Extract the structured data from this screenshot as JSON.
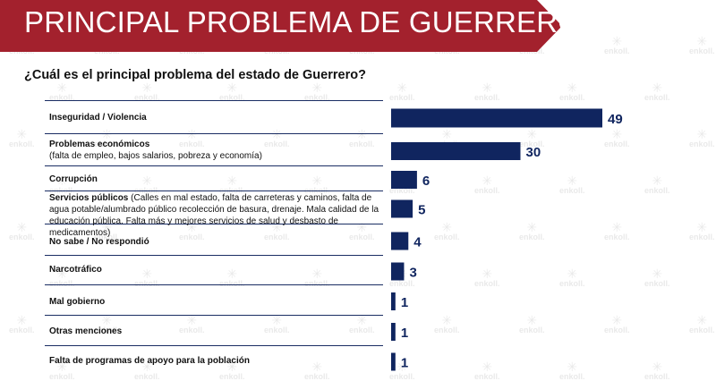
{
  "header": {
    "title": "PRINCIPAL PROBLEMA DE GUERRERO",
    "question": "¿Cuál es el principal problema del estado de Guerrero?"
  },
  "watermark": {
    "brand": "enkoll."
  },
  "colors": {
    "banner": "#a3212d",
    "bar": "#10255f",
    "text": "#111111"
  },
  "chart_data": {
    "type": "bar",
    "orientation": "horizontal",
    "categories": [
      "Inseguridad / Violencia",
      "Problemas económicos (falta de empleo, bajos salarios, pobreza y economía)",
      "Corrupción",
      "Servicios públicos (Calles en mal estado, falta de carreteras y caminos, falta de agua potable/alumbrado público recolección de basura, drenaje. Mala calidad de la educación pública. Falta más y mejores servicios de salud y desbasto de medicamentos)",
      "No sabe / No respondió",
      "Narcotráfico",
      "Mal gobierno",
      "Otras menciones",
      "Falta de programas de apoyo para la población"
    ],
    "values": [
      49,
      30,
      6,
      5,
      4,
      3,
      1,
      1,
      1
    ],
    "labels": [
      {
        "main": "Inseguridad / Violencia",
        "detail": ""
      },
      {
        "main": "Problemas económicos",
        "detail": "(falta de empleo, bajos salarios, pobreza y economía)"
      },
      {
        "main": "Corrupción",
        "detail": ""
      },
      {
        "main": "Servicios públicos",
        "detail": " (Calles en mal estado, falta de carreteras y caminos, falta de agua potable/alumbrado público recolección de basura, drenaje. Mala calidad de la educación pública. Falta más y mejores servicios de salud y desbasto de medicamentos)"
      },
      {
        "main": "No sabe / No respondió",
        "detail": ""
      },
      {
        "main": "Narcotráfico",
        "detail": ""
      },
      {
        "main": "Mal gobierno",
        "detail": ""
      },
      {
        "main": "Otras menciones",
        "detail": ""
      },
      {
        "main": "Falta de programas de apoyo para la población",
        "detail": ""
      }
    ],
    "title": "PRINCIPAL PROBLEMA DE GUERRERO",
    "xlabel": "",
    "ylabel": "",
    "xlim": [
      0,
      49
    ],
    "grid": false,
    "legend": "none"
  }
}
